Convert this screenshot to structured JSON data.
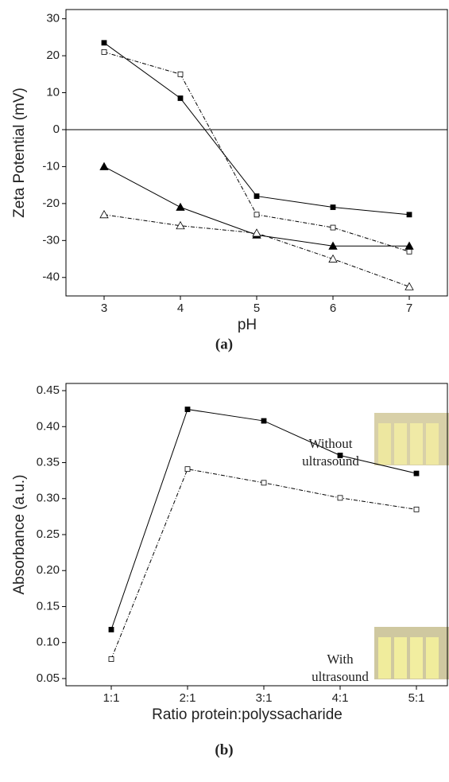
{
  "chart_data": [
    {
      "type": "line",
      "x_label": "pH",
      "y_label": "Zeta Potential (mV)",
      "caption": "(a)",
      "x": [
        3,
        4,
        5,
        6,
        7
      ],
      "xlim": [
        2.5,
        7.5
      ],
      "xticks": [
        3,
        4,
        5,
        6,
        7
      ],
      "ylim": [
        -45,
        32.5
      ],
      "yticks": [
        30,
        20,
        10,
        0,
        -10,
        -20,
        -30,
        -40
      ],
      "zero_line": true,
      "series": [
        {
          "color": "#000000",
          "marker": "square",
          "filled": true,
          "dash": "solid",
          "values": [
            23.5,
            8.5,
            -18,
            -21,
            -23
          ]
        },
        {
          "color": "#000000",
          "marker": "square",
          "filled": false,
          "dash": "dashdot",
          "values": [
            21,
            15,
            -23,
            -26.5,
            -33
          ]
        },
        {
          "color": "#000000",
          "marker": "triangle",
          "filled": true,
          "dash": "solid",
          "values": [
            -10,
            -21,
            -28.5,
            -31.5,
            -31.5
          ]
        },
        {
          "color": "#000000",
          "marker": "triangle",
          "filled": false,
          "dash": "dashdot",
          "values": [
            -23,
            -26,
            -28,
            -35,
            -42.5
          ]
        }
      ]
    },
    {
      "type": "line",
      "x_label": "Ratio protein:polyssacharide",
      "y_label": "Absorbance (a.u.)",
      "caption": "(b)",
      "categories": [
        "1:1",
        "2:1",
        "3:1",
        "4:1",
        "5:1"
      ],
      "ylim": [
        0.04,
        0.46
      ],
      "yticks": [
        0.45,
        {
          "value": 0.4,
          "label": "0.40"
        },
        0.35,
        {
          "value": 0.3,
          "label": "0.30"
        },
        0.25,
        {
          "value": 0.2,
          "label": "0.20"
        },
        0.15,
        {
          "value": 0.1,
          "label": "0.10"
        },
        0.05
      ],
      "annotations": [
        [
          "Without",
          "ultrasound"
        ],
        [
          "With",
          "ultrasound"
        ]
      ],
      "series": [
        {
          "color": "#000000",
          "marker": "square",
          "filled": true,
          "dash": "solid",
          "values": [
            0.118,
            0.424,
            0.408,
            0.36,
            0.335
          ]
        },
        {
          "color": "#000000",
          "marker": "square",
          "filled": false,
          "dash": "dashdot",
          "values": [
            0.077,
            0.341,
            0.322,
            0.301,
            0.285
          ]
        }
      ]
    }
  ]
}
